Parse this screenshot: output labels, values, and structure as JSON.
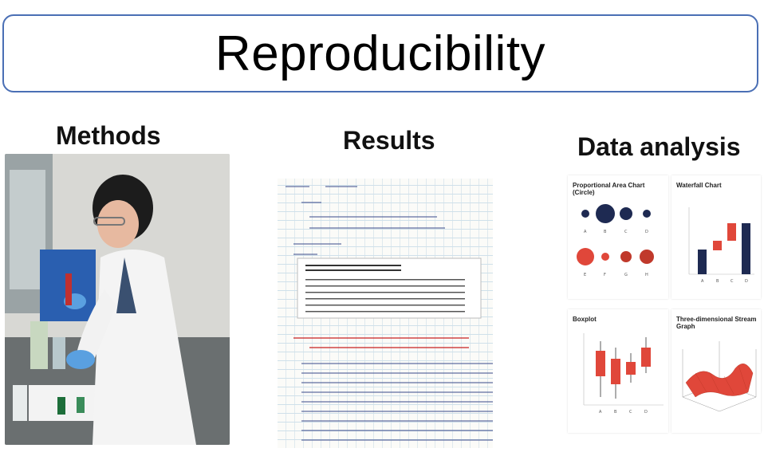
{
  "title": "Reproducibility",
  "sections": {
    "methods": "Methods",
    "results": "Results",
    "analysis": "Data analysis"
  },
  "charts": {
    "proportional_area": {
      "title": "Proportional Area Chart (Circle)",
      "labels": [
        "A",
        "B",
        "C",
        "D",
        "E",
        "F",
        "G",
        "H"
      ]
    },
    "waterfall": {
      "title": "Waterfall Chart",
      "labels": [
        "A",
        "B",
        "C",
        "D"
      ]
    },
    "boxplot": {
      "title": "Boxplot",
      "labels": [
        "A",
        "B",
        "C",
        "D"
      ]
    },
    "stream": {
      "title": "Three-dimensional Stream Graph"
    }
  },
  "colors": {
    "title_border": "#4a6fb5",
    "navy": "#1e2a52",
    "red": "#e0473a",
    "dark_red": "#c0392b"
  }
}
